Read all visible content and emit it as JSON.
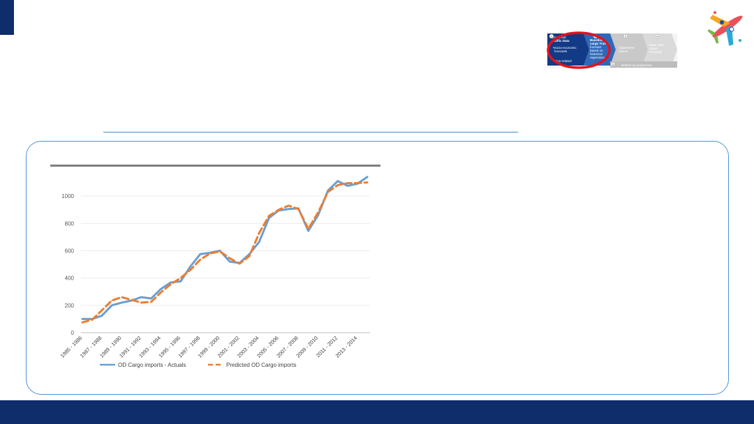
{
  "colors": {
    "navy": "#0f2c6b",
    "rule_blue": "#3d8fd6",
    "panel_border": "#4d93d9",
    "actual_line": "#6a9fd1",
    "predicted_line": "#ec7d31",
    "highlight_red": "#e3121d"
  },
  "icons": {
    "logo": "airplane-logo-icon"
  },
  "diagram": {
    "step1_lines": [
      "Historical",
      "traffic Data",
      "•Socio-economic",
      "forecasts",
      "•ation-related"
    ],
    "step2_lines": [
      "Baseline",
      "cargo Traffic",
      "forecast",
      "based on",
      "historical",
      "regression"
    ],
    "step3_lines": [
      "Adjustment",
      "factors"
    ],
    "step4_lines": [
      "Base case",
      "cargo",
      "forecasts"
    ],
    "bottom_label": "Bottom-up projections",
    "step_numbers": [
      "1",
      "2",
      "3",
      "4",
      "5"
    ]
  },
  "chart_data": {
    "type": "line",
    "categories": [
      "1985 - 1986",
      "1986 - 1987",
      "1987 - 1988",
      "1988 - 1989",
      "1989 - 1990",
      "1990 - 1991",
      "1991 - 1992",
      "1992 - 1993",
      "1993 - 1994",
      "1994 - 1995",
      "1995 - 1996",
      "1996 - 1997",
      "1997 - 1998",
      "1998 - 1999",
      "1999 - 2000",
      "2000 - 2001",
      "2001 - 2002",
      "2002 - 2003",
      "2003 - 2004",
      "2004 - 2005",
      "2005 - 2006",
      "2006 - 2007",
      "2007 - 2008",
      "2008 - 2009",
      "2009 - 2010",
      "2010 - 2011",
      "2011 - 2012",
      "2012 - 2013",
      "2013 - 2014",
      "2014 - 2015"
    ],
    "tick_labels": [
      "1985 - 1986",
      "1987 - 1988",
      "1989 - 1990",
      "1991 - 1992",
      "1993 - 1994",
      "1995 - 1996",
      "1997 - 1998",
      "1999 - 2000",
      "2001 - 2002",
      "2003 - 2004",
      "2005 - 2006",
      "2007 - 2008",
      "2009 - 2010",
      "2011 - 2012",
      "2013 - 2014"
    ],
    "series": [
      {
        "name": "OD Cargo imports - Actuals",
        "values": [
          100,
          100,
          125,
          200,
          220,
          235,
          260,
          250,
          320,
          368,
          375,
          485,
          575,
          585,
          600,
          520,
          510,
          575,
          665,
          840,
          895,
          905,
          910,
          745,
          860,
          1040,
          1110,
          1075,
          1090,
          1140
        ]
      },
      {
        "name": "Predicted OD Cargo imports",
        "values": [
          75,
          95,
          165,
          235,
          260,
          240,
          220,
          225,
          295,
          355,
          400,
          460,
          535,
          580,
          595,
          545,
          505,
          560,
          730,
          855,
          900,
          930,
          905,
          760,
          880,
          1030,
          1080,
          1095,
          1095,
          1100
        ]
      }
    ],
    "yticks": [
      0,
      200,
      400,
      600,
      800,
      1000
    ],
    "ylim": [
      0,
      1200
    ],
    "grid": true,
    "legend_position": "bottom"
  }
}
